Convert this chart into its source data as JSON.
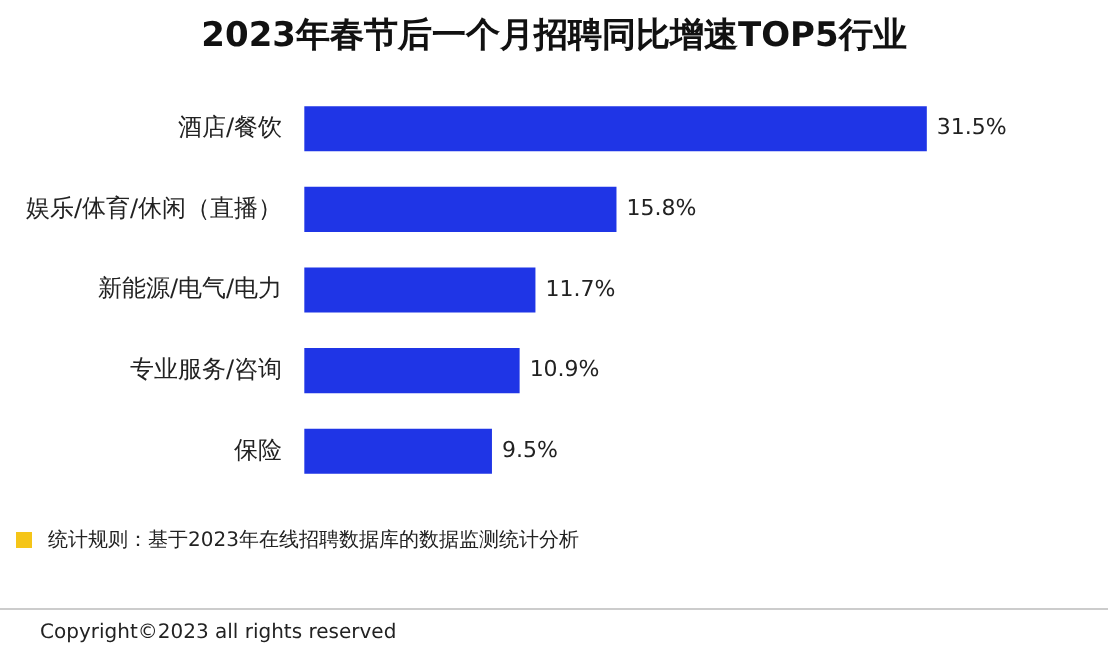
{
  "chart_data": {
    "type": "bar",
    "orientation": "horizontal",
    "title": "2023年春节后一个月招聘同比增速TOP5行业",
    "categories": [
      "酒店/餐饮",
      "娱乐/体育/休闲（直播）",
      "新能源/电气/电力",
      "专业服务/咨询",
      "保险"
    ],
    "values": [
      31.5,
      15.8,
      11.7,
      10.9,
      9.5
    ],
    "value_labels": [
      "31.5%",
      "15.8%",
      "11.7%",
      "10.9%",
      "9.5%"
    ],
    "color": "#1f35e6",
    "legend": false,
    "tick_labels": "y",
    "annotations": [
      "统计规则：基于2023年在线招聘数据库的数据监测统计分析",
      "Copyright©2023 all rights reserved"
    ]
  }
}
